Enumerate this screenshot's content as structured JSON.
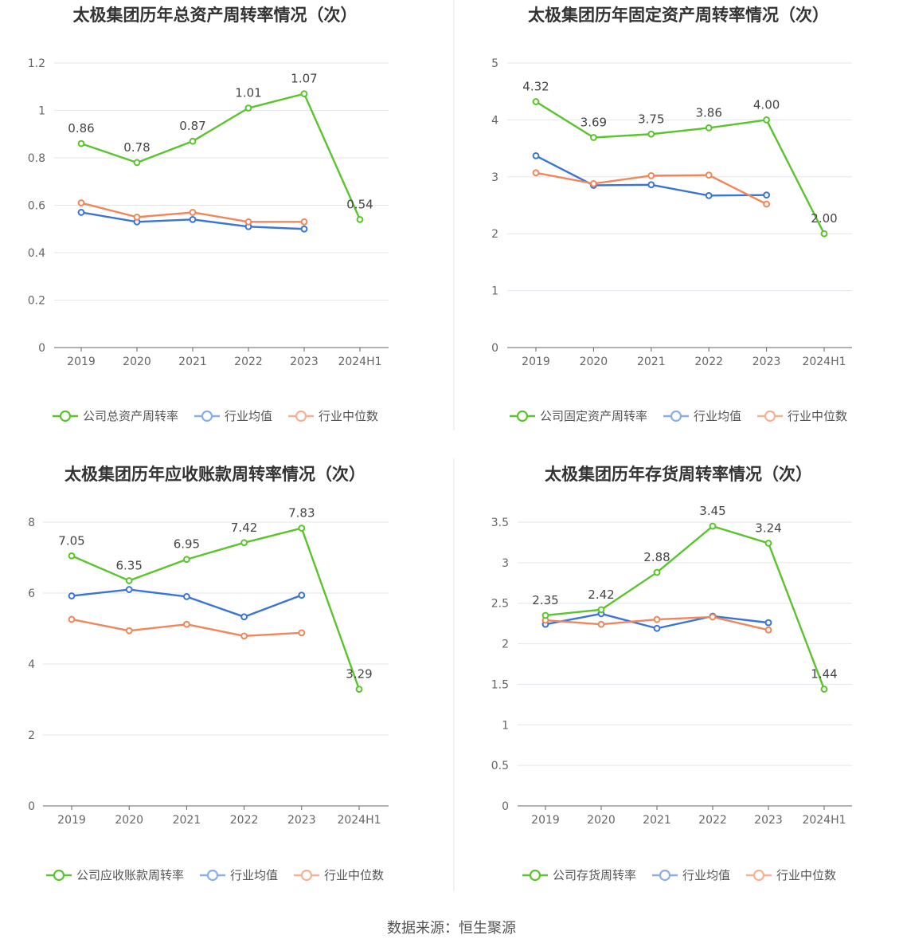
{
  "colors": {
    "company": "#5ac42c",
    "avg": "#3a74d6",
    "median": "#f0865a",
    "avg_legend": "#8aaee8",
    "median_legend": "#f5b095",
    "grid": "#e4e6ee",
    "axis": "#666666",
    "text": "#555555",
    "title": "#333333"
  },
  "source": "数据来源：恒生聚源",
  "chart_data": [
    {
      "type": "line",
      "title": "太极集团历年总资产周转率情况（次）",
      "categories": [
        "2019",
        "2020",
        "2021",
        "2022",
        "2023",
        "2024H1"
      ],
      "ylim": [
        0,
        1.2
      ],
      "yticks": [
        "0",
        "0.2",
        "0.4",
        "0.6",
        "0.8",
        "1",
        "1.2"
      ],
      "grid": true,
      "legend_position": "bottom",
      "series": [
        {
          "name": "公司总资产周转率",
          "role": "company",
          "values": [
            0.86,
            0.78,
            0.87,
            1.01,
            1.07,
            0.54
          ],
          "labels": [
            "0.86",
            "0.78",
            "0.87",
            "1.01",
            "1.07",
            "0.54"
          ]
        },
        {
          "name": "行业均值",
          "role": "avg",
          "values": [
            0.57,
            0.53,
            0.54,
            0.51,
            0.5,
            null
          ]
        },
        {
          "name": "行业中位数",
          "role": "median",
          "values": [
            0.61,
            0.55,
            0.57,
            0.53,
            0.53,
            null
          ]
        }
      ]
    },
    {
      "type": "line",
      "title": "太极集团历年固定资产周转率情况（次）",
      "categories": [
        "2019",
        "2020",
        "2021",
        "2022",
        "2023",
        "2024H1"
      ],
      "ylim": [
        0,
        5
      ],
      "yticks": [
        "0",
        "1",
        "2",
        "3",
        "4",
        "5"
      ],
      "grid": true,
      "legend_position": "bottom",
      "series": [
        {
          "name": "公司固定资产周转率",
          "role": "company",
          "values": [
            4.32,
            3.69,
            3.75,
            3.86,
            4.0,
            2.0
          ],
          "labels": [
            "4.32",
            "3.69",
            "3.75",
            "3.86",
            "4.00",
            "2.00"
          ]
        },
        {
          "name": "行业均值",
          "role": "avg",
          "values": [
            3.37,
            2.85,
            2.86,
            2.67,
            2.68,
            null
          ]
        },
        {
          "name": "行业中位数",
          "role": "median",
          "values": [
            3.07,
            2.88,
            3.02,
            3.03,
            2.52,
            null
          ]
        }
      ]
    },
    {
      "type": "line",
      "title": "太极集团历年应收账款周转率情况（次）",
      "categories": [
        "2019",
        "2020",
        "2021",
        "2022",
        "2023",
        "2024H1"
      ],
      "ylim": [
        0,
        8
      ],
      "yticks": [
        "0",
        "2",
        "4",
        "6",
        "8"
      ],
      "grid": true,
      "legend_position": "bottom",
      "series": [
        {
          "name": "公司应收账款周转率",
          "role": "company",
          "values": [
            7.05,
            6.35,
            6.95,
            7.42,
            7.83,
            3.29
          ],
          "labels": [
            "7.05",
            "6.35",
            "6.95",
            "7.42",
            "7.83",
            "3.29"
          ]
        },
        {
          "name": "行业均值",
          "role": "avg",
          "values": [
            5.92,
            6.1,
            5.9,
            5.33,
            5.94,
            null
          ]
        },
        {
          "name": "行业中位数",
          "role": "median",
          "values": [
            5.26,
            4.94,
            5.12,
            4.79,
            4.88,
            null
          ]
        }
      ]
    },
    {
      "type": "line",
      "title": "太极集团历年存货周转率情况（次）",
      "categories": [
        "2019",
        "2020",
        "2021",
        "2022",
        "2023",
        "2024H1"
      ],
      "ylim": [
        0,
        3.5
      ],
      "yticks": [
        "0",
        "0.5",
        "1",
        "1.5",
        "2",
        "2.5",
        "3",
        "3.5"
      ],
      "grid": true,
      "legend_position": "bottom",
      "series": [
        {
          "name": "公司存货周转率",
          "role": "company",
          "values": [
            2.35,
            2.42,
            2.88,
            3.45,
            3.24,
            1.44
          ],
          "labels": [
            "2.35",
            "2.42",
            "2.88",
            "3.45",
            "3.24",
            "1.44"
          ]
        },
        {
          "name": "行业均值",
          "role": "avg",
          "values": [
            2.24,
            2.37,
            2.19,
            2.34,
            2.26,
            null
          ]
        },
        {
          "name": "行业中位数",
          "role": "median",
          "values": [
            2.29,
            2.24,
            2.3,
            2.33,
            2.17,
            null
          ]
        }
      ]
    }
  ]
}
